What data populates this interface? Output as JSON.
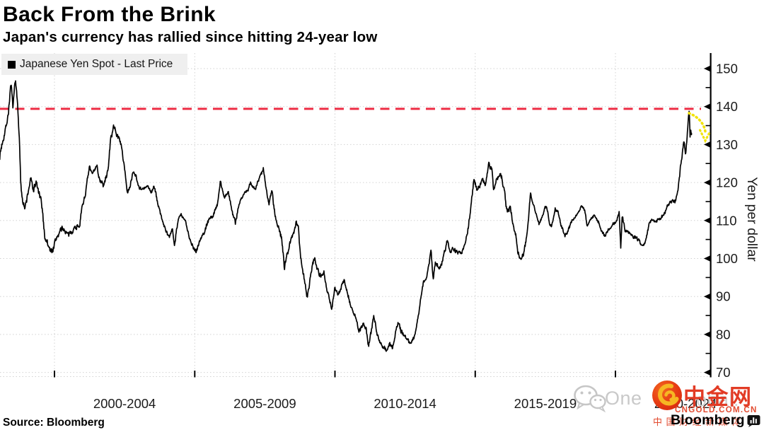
{
  "header": {
    "title": "Back From the Brink",
    "subtitle": "Japan's currency has rallied since hitting 24-year low"
  },
  "legend": {
    "label": "Japanese Yen Spot - Last Price"
  },
  "source": {
    "label": "Source: Bloomberg"
  },
  "branding": {
    "bloomberg": "Bloomberg"
  },
  "watermark": {
    "fragment_left": "One",
    "fragment_right": "obal.",
    "cngold_name": "中金网",
    "cngold_domain": "CNGOLD.COM.CN",
    "cngold_tagline": "中国财经新媒体"
  },
  "chart_data": {
    "type": "line",
    "title": "Back From the Brink",
    "subtitle": "Japan's currency has rallied since hitting 24-year low",
    "series_name": "Japanese Yen Spot - Last Price",
    "xlabel": "",
    "ylabel": "Yen per dollar",
    "y_ticks": [
      70,
      80,
      90,
      100,
      110,
      120,
      130,
      140,
      150
    ],
    "y_minor_ticks": [
      75,
      85,
      95,
      105,
      115,
      125,
      135,
      145
    ],
    "ylim": [
      68,
      154
    ],
    "x_domain": [
      1998.05,
      2023.4
    ],
    "x_gridline_years": [
      2000,
      2005,
      2010,
      2015,
      2020
    ],
    "x_tick_labels": [
      "2000-2004",
      "2005-2009",
      "2010-2014",
      "2015-2019",
      "2020-2024"
    ],
    "grid": "dotted",
    "legend_position": "top-left",
    "colors": {
      "line": "#000000",
      "dashed_line": "#ed2c44",
      "arrow": "#f2e30c",
      "grid": "#d2d2d2",
      "axis": "#000000"
    },
    "annotations": {
      "dashed_line_value": 139.4,
      "arrow": {
        "from_value": 139.0,
        "to_value": 131.5,
        "at_year": 2022.65,
        "meaning": "pullback from 24-year low of the yen (high of USD/JPY)"
      }
    },
    "keypoints": [
      [
        1998.05,
        127
      ],
      [
        1998.15,
        131
      ],
      [
        1998.25,
        134
      ],
      [
        1998.35,
        138
      ],
      [
        1998.45,
        146.3
      ],
      [
        1998.52,
        139
      ],
      [
        1998.6,
        147.5
      ],
      [
        1998.68,
        141
      ],
      [
        1998.74,
        133
      ],
      [
        1998.8,
        119
      ],
      [
        1998.86,
        116
      ],
      [
        1998.95,
        113
      ],
      [
        1999.05,
        117
      ],
      [
        1999.15,
        121
      ],
      [
        1999.25,
        118
      ],
      [
        1999.35,
        120
      ],
      [
        1999.45,
        117
      ],
      [
        1999.55,
        114
      ],
      [
        1999.65,
        106
      ],
      [
        1999.75,
        104
      ],
      [
        1999.85,
        102
      ],
      [
        1999.95,
        102.5
      ],
      [
        2000.1,
        106
      ],
      [
        2000.3,
        108
      ],
      [
        2000.5,
        106
      ],
      [
        2000.7,
        108
      ],
      [
        2000.9,
        109
      ],
      [
        2001.0,
        114
      ],
      [
        2001.1,
        117
      ],
      [
        2001.25,
        124
      ],
      [
        2001.35,
        122
      ],
      [
        2001.5,
        125
      ],
      [
        2001.6,
        121
      ],
      [
        2001.75,
        119
      ],
      [
        2001.9,
        123
      ],
      [
        2002.0,
        131
      ],
      [
        2002.1,
        134.8
      ],
      [
        2002.2,
        133
      ],
      [
        2002.35,
        131
      ],
      [
        2002.5,
        124
      ],
      [
        2002.6,
        117
      ],
      [
        2002.7,
        119
      ],
      [
        2002.8,
        123
      ],
      [
        2002.9,
        122
      ],
      [
        2003.0,
        119
      ],
      [
        2003.15,
        118
      ],
      [
        2003.3,
        119
      ],
      [
        2003.45,
        117.5
      ],
      [
        2003.55,
        119
      ],
      [
        2003.7,
        114
      ],
      [
        2003.85,
        110
      ],
      [
        2004.0,
        106.5
      ],
      [
        2004.1,
        105.5
      ],
      [
        2004.2,
        108
      ],
      [
        2004.28,
        103.8
      ],
      [
        2004.4,
        110
      ],
      [
        2004.5,
        111.5
      ],
      [
        2004.65,
        110
      ],
      [
        2004.8,
        106
      ],
      [
        2004.95,
        102.8
      ],
      [
        2005.05,
        102
      ],
      [
        2005.2,
        105
      ],
      [
        2005.35,
        107
      ],
      [
        2005.5,
        110.5
      ],
      [
        2005.65,
        111
      ],
      [
        2005.8,
        114
      ],
      [
        2005.92,
        120.5
      ],
      [
        2006.05,
        116
      ],
      [
        2006.2,
        117.5
      ],
      [
        2006.35,
        112
      ],
      [
        2006.45,
        109.5
      ],
      [
        2006.6,
        115
      ],
      [
        2006.75,
        117
      ],
      [
        2006.9,
        118
      ],
      [
        2007.0,
        120
      ],
      [
        2007.15,
        118
      ],
      [
        2007.3,
        121
      ],
      [
        2007.45,
        123.8
      ],
      [
        2007.55,
        118
      ],
      [
        2007.65,
        114.5
      ],
      [
        2007.75,
        118.5
      ],
      [
        2007.85,
        112
      ],
      [
        2008.0,
        108
      ],
      [
        2008.1,
        105
      ],
      [
        2008.2,
        97.5
      ],
      [
        2008.35,
        103
      ],
      [
        2008.5,
        106
      ],
      [
        2008.62,
        110
      ],
      [
        2008.7,
        108
      ],
      [
        2008.78,
        100
      ],
      [
        2008.85,
        97
      ],
      [
        2008.92,
        94
      ],
      [
        2009.0,
        90
      ],
      [
        2009.08,
        93
      ],
      [
        2009.18,
        98
      ],
      [
        2009.28,
        100.5
      ],
      [
        2009.4,
        96.5
      ],
      [
        2009.5,
        95
      ],
      [
        2009.6,
        97
      ],
      [
        2009.7,
        92
      ],
      [
        2009.8,
        89.5
      ],
      [
        2009.88,
        86.5
      ],
      [
        2010.0,
        92.5
      ],
      [
        2010.1,
        90
      ],
      [
        2010.2,
        92
      ],
      [
        2010.33,
        94.3
      ],
      [
        2010.45,
        91
      ],
      [
        2010.6,
        86.5
      ],
      [
        2010.75,
        84.5
      ],
      [
        2010.85,
        80.5
      ],
      [
        2011.0,
        82.5
      ],
      [
        2011.1,
        82
      ],
      [
        2011.2,
        77
      ],
      [
        2011.3,
        81
      ],
      [
        2011.38,
        85
      ],
      [
        2011.5,
        80.5
      ],
      [
        2011.6,
        78
      ],
      [
        2011.75,
        76.5
      ],
      [
        2011.85,
        75.6
      ],
      [
        2011.95,
        77.8
      ],
      [
        2012.05,
        76.5
      ],
      [
        2012.15,
        80
      ],
      [
        2012.25,
        83.5
      ],
      [
        2012.35,
        81
      ],
      [
        2012.5,
        79.5
      ],
      [
        2012.6,
        78.5
      ],
      [
        2012.72,
        77.7
      ],
      [
        2012.85,
        80
      ],
      [
        2012.95,
        84
      ],
      [
        2013.05,
        89
      ],
      [
        2013.15,
        93.5
      ],
      [
        2013.25,
        95
      ],
      [
        2013.38,
        99.5
      ],
      [
        2013.42,
        102.5
      ],
      [
        2013.5,
        94.5
      ],
      [
        2013.58,
        99
      ],
      [
        2013.7,
        97.5
      ],
      [
        2013.8,
        98.5
      ],
      [
        2013.92,
        102
      ],
      [
        2014.0,
        104.8
      ],
      [
        2014.1,
        101.5
      ],
      [
        2014.2,
        102.3
      ],
      [
        2014.35,
        101.8
      ],
      [
        2014.5,
        101.5
      ],
      [
        2014.62,
        103
      ],
      [
        2014.75,
        108
      ],
      [
        2014.85,
        114
      ],
      [
        2014.95,
        120.5
      ],
      [
        2015.05,
        118.5
      ],
      [
        2015.15,
        118.8
      ],
      [
        2015.25,
        121
      ],
      [
        2015.38,
        119.5
      ],
      [
        2015.48,
        125.3
      ],
      [
        2015.6,
        123.5
      ],
      [
        2015.65,
        118
      ],
      [
        2015.75,
        120.5
      ],
      [
        2015.88,
        122.5
      ],
      [
        2015.95,
        121
      ],
      [
        2016.05,
        117
      ],
      [
        2016.12,
        112.5
      ],
      [
        2016.25,
        113.5
      ],
      [
        2016.35,
        109
      ],
      [
        2016.45,
        106.5
      ],
      [
        2016.52,
        101.5
      ],
      [
        2016.62,
        100.3
      ],
      [
        2016.7,
        100.5
      ],
      [
        2016.8,
        104
      ],
      [
        2016.9,
        110
      ],
      [
        2016.97,
        117.5
      ],
      [
        2017.05,
        114.5
      ],
      [
        2017.15,
        112.5
      ],
      [
        2017.28,
        109
      ],
      [
        2017.4,
        111.5
      ],
      [
        2017.53,
        114
      ],
      [
        2017.65,
        109.5
      ],
      [
        2017.72,
        108.3
      ],
      [
        2017.85,
        113
      ],
      [
        2017.95,
        112.5
      ],
      [
        2018.05,
        109
      ],
      [
        2018.2,
        105.8
      ],
      [
        2018.3,
        107
      ],
      [
        2018.45,
        110
      ],
      [
        2018.6,
        111
      ],
      [
        2018.78,
        113.8
      ],
      [
        2018.9,
        112.8
      ],
      [
        2019.0,
        108.5
      ],
      [
        2019.1,
        110
      ],
      [
        2019.25,
        111.5
      ],
      [
        2019.4,
        109.5
      ],
      [
        2019.5,
        107.5
      ],
      [
        2019.62,
        105.8
      ],
      [
        2019.75,
        107.5
      ],
      [
        2019.88,
        108.8
      ],
      [
        2020.0,
        109.3
      ],
      [
        2020.13,
        112
      ],
      [
        2020.19,
        103
      ],
      [
        2020.24,
        111.2
      ],
      [
        2020.35,
        107.3
      ],
      [
        2020.5,
        107
      ],
      [
        2020.62,
        105.8
      ],
      [
        2020.75,
        105.5
      ],
      [
        2020.88,
        104.2
      ],
      [
        2021.0,
        103.2
      ],
      [
        2021.1,
        105.5
      ],
      [
        2021.2,
        109
      ],
      [
        2021.3,
        110.3
      ],
      [
        2021.42,
        109.3
      ],
      [
        2021.55,
        110.5
      ],
      [
        2021.65,
        111
      ],
      [
        2021.75,
        112
      ],
      [
        2021.85,
        114.2
      ],
      [
        2021.95,
        115
      ],
      [
        2022.05,
        115.2
      ],
      [
        2022.12,
        114.8
      ],
      [
        2022.2,
        116.5
      ],
      [
        2022.28,
        121
      ],
      [
        2022.33,
        125
      ],
      [
        2022.4,
        128.5
      ],
      [
        2022.45,
        131
      ],
      [
        2022.5,
        127
      ],
      [
        2022.55,
        131.5
      ],
      [
        2022.6,
        136.5
      ],
      [
        2022.63,
        139.1
      ],
      [
        2022.66,
        132
      ],
      [
        2022.68,
        135
      ],
      [
        2022.71,
        133
      ]
    ]
  }
}
